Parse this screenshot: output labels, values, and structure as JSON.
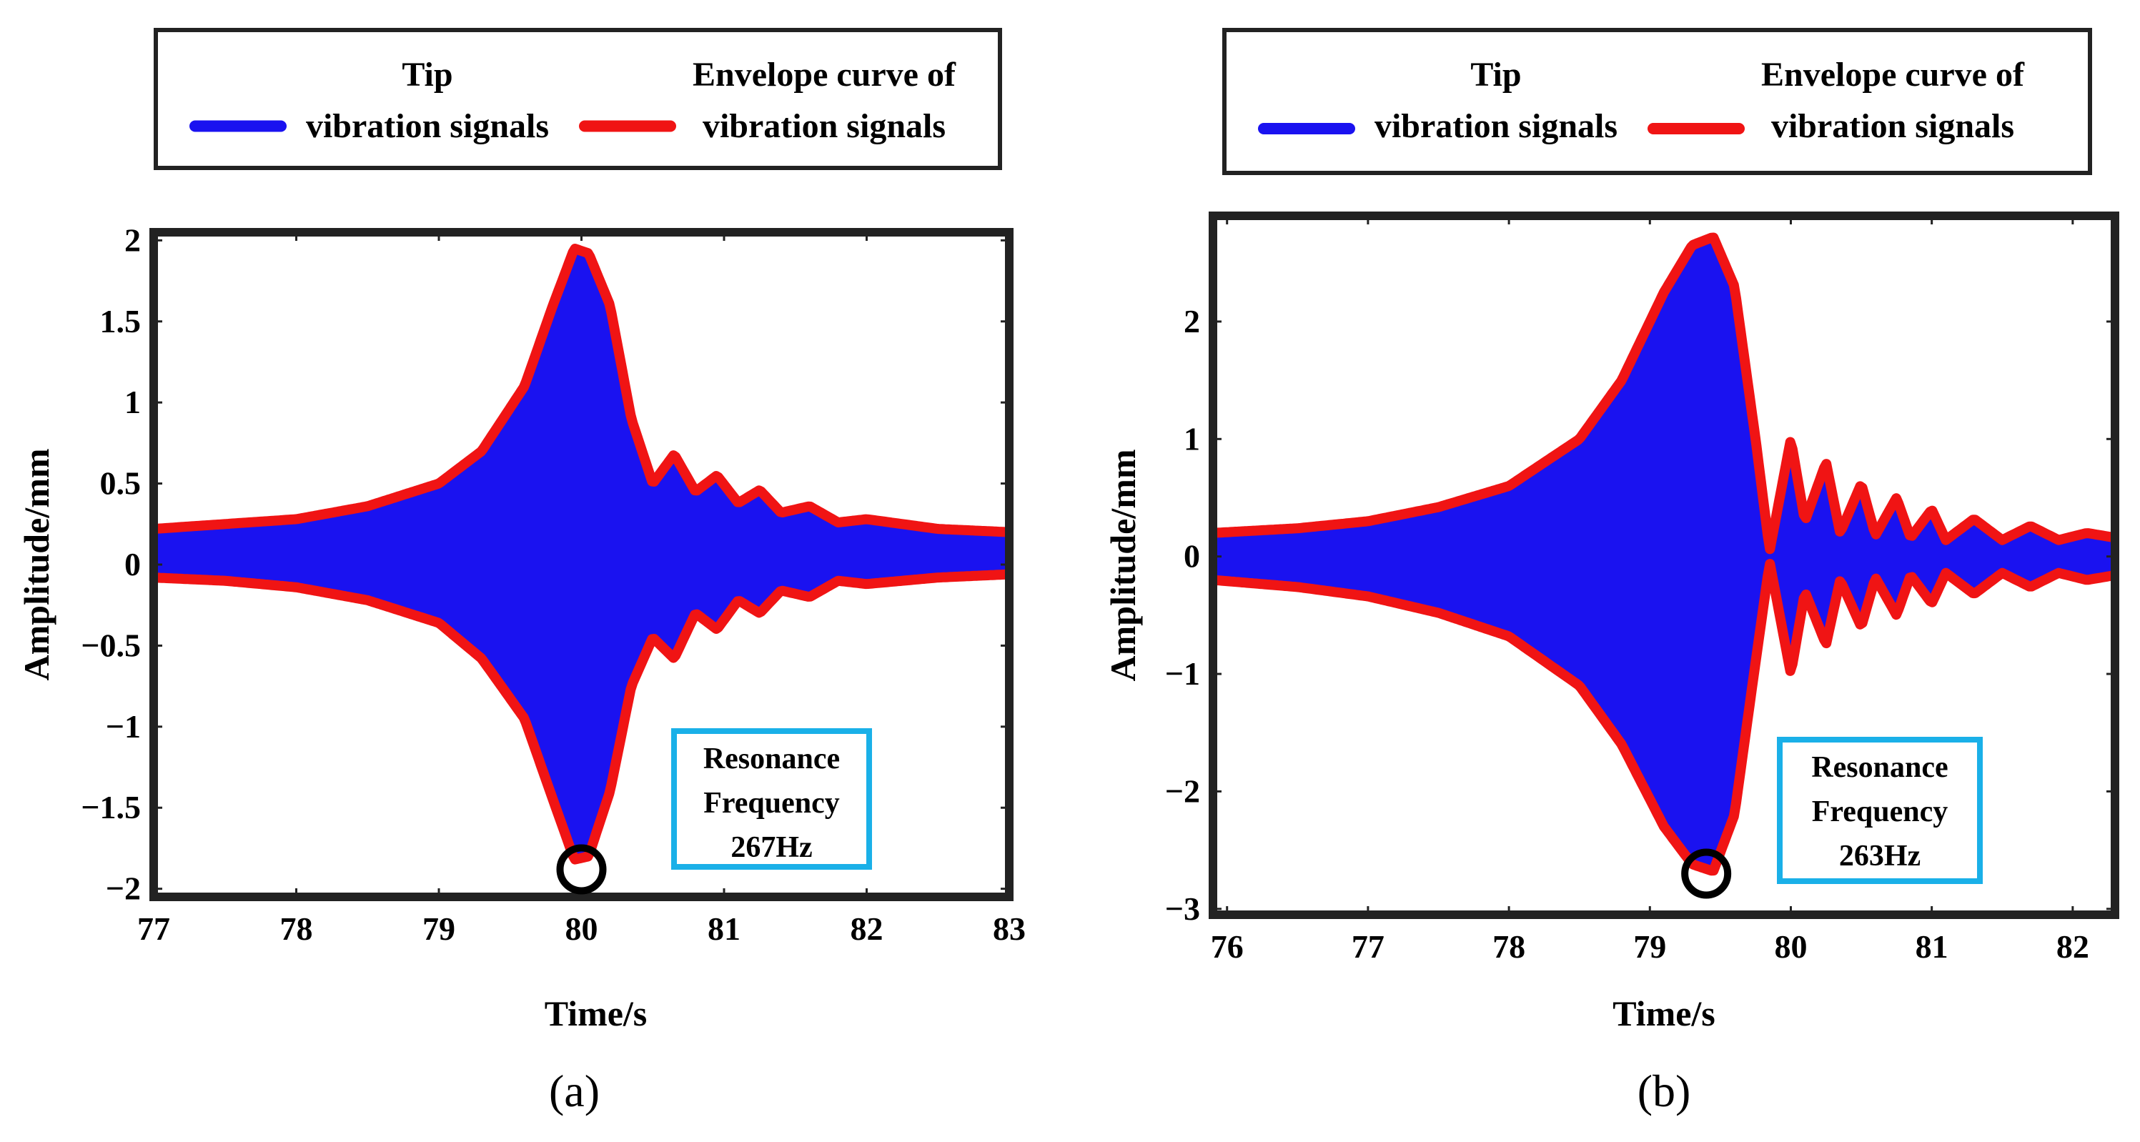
{
  "chart_data": [
    {
      "type": "line",
      "panel_label": "(a)",
      "legend": {
        "placement": "top",
        "entries": [
          {
            "line1": "Tip",
            "line2": "vibration signals",
            "color": "#1a12f0"
          },
          {
            "line1": "Envelope curve of",
            "line2": "vibration signals",
            "color": "#f01414"
          }
        ]
      },
      "xlabel": "Time/s",
      "ylabel": "Amplitude/mm",
      "xlim": [
        77,
        83
      ],
      "ylim": [
        -2.05,
        2.05
      ],
      "xticks": [
        77,
        78,
        79,
        80,
        81,
        82,
        83
      ],
      "xtick_labels": [
        "77",
        "78",
        "79",
        "80",
        "81",
        "82",
        "83"
      ],
      "yticks": [
        -2,
        -1.5,
        -1,
        -0.5,
        0,
        0.5,
        1,
        1.5,
        2
      ],
      "ytick_labels": [
        "−2",
        "−1.5",
        "−1",
        "−0.5",
        "0",
        "0.5",
        "1",
        "1.5",
        "2"
      ],
      "series": [
        {
          "name": "Tip vibration signals",
          "color": "#1a12f0",
          "kind": "filled-band"
        },
        {
          "name": "Envelope curve of vibration signals",
          "color": "#f01414",
          "upper": [
            [
              77,
              0.22
            ],
            [
              77.5,
              0.25
            ],
            [
              78,
              0.28
            ],
            [
              78.5,
              0.36
            ],
            [
              79,
              0.5
            ],
            [
              79.3,
              0.7
            ],
            [
              79.6,
              1.1
            ],
            [
              79.8,
              1.6
            ],
            [
              79.95,
              1.95
            ],
            [
              80.05,
              1.92
            ],
            [
              80.2,
              1.6
            ],
            [
              80.35,
              0.9
            ],
            [
              80.5,
              0.5
            ],
            [
              80.65,
              0.68
            ],
            [
              80.8,
              0.45
            ],
            [
              80.95,
              0.55
            ],
            [
              81.1,
              0.38
            ],
            [
              81.25,
              0.46
            ],
            [
              81.4,
              0.32
            ],
            [
              81.6,
              0.36
            ],
            [
              81.8,
              0.26
            ],
            [
              82,
              0.28
            ],
            [
              82.5,
              0.22
            ],
            [
              83,
              0.2
            ]
          ],
          "lower": [
            [
              77,
              -0.08
            ],
            [
              77.5,
              -0.1
            ],
            [
              78,
              -0.14
            ],
            [
              78.5,
              -0.22
            ],
            [
              79,
              -0.36
            ],
            [
              79.3,
              -0.58
            ],
            [
              79.6,
              -0.95
            ],
            [
              79.8,
              -1.45
            ],
            [
              79.95,
              -1.82
            ],
            [
              80.05,
              -1.8
            ],
            [
              80.2,
              -1.4
            ],
            [
              80.35,
              -0.75
            ],
            [
              80.5,
              -0.45
            ],
            [
              80.65,
              -0.58
            ],
            [
              80.8,
              -0.3
            ],
            [
              80.95,
              -0.4
            ],
            [
              81.1,
              -0.22
            ],
            [
              81.25,
              -0.3
            ],
            [
              81.4,
              -0.16
            ],
            [
              81.6,
              -0.2
            ],
            [
              81.8,
              -0.1
            ],
            [
              82,
              -0.12
            ],
            [
              82.5,
              -0.08
            ],
            [
              83,
              -0.06
            ]
          ]
        }
      ],
      "marker": {
        "x": 80.0,
        "y": -1.88,
        "shape": "circle"
      },
      "annotation": {
        "lines": [
          "Resonance",
          "Frequency",
          "267Hz"
        ],
        "border_color": "#1ab0e8"
      }
    },
    {
      "type": "line",
      "panel_label": "(b)",
      "legend": {
        "placement": "top",
        "entries": [
          {
            "line1": "Tip",
            "line2": "vibration signals",
            "color": "#1a12f0"
          },
          {
            "line1": "Envelope curve of",
            "line2": "vibration signals",
            "color": "#f01414"
          }
        ]
      },
      "xlabel": "Time/s",
      "ylabel": "Amplitude/mm",
      "xlim": [
        75.9,
        82.3
      ],
      "ylim": [
        -3.05,
        2.9
      ],
      "xticks": [
        76,
        77,
        78,
        79,
        80,
        81,
        82
      ],
      "xtick_labels": [
        "76",
        "77",
        "78",
        "79",
        "80",
        "81",
        "82"
      ],
      "yticks": [
        -3,
        -2,
        -1,
        0,
        1,
        2
      ],
      "ytick_labels": [
        "−3",
        "−2",
        "−1",
        "0",
        "1",
        "2"
      ],
      "series": [
        {
          "name": "Tip vibration signals",
          "color": "#1a12f0",
          "kind": "filled-band"
        },
        {
          "name": "Envelope curve of vibration signals",
          "color": "#f01414",
          "upper": [
            [
              75.9,
              0.2
            ],
            [
              76.5,
              0.24
            ],
            [
              77,
              0.3
            ],
            [
              77.5,
              0.42
            ],
            [
              78,
              0.6
            ],
            [
              78.5,
              1.0
            ],
            [
              78.8,
              1.5
            ],
            [
              79.1,
              2.25
            ],
            [
              79.3,
              2.65
            ],
            [
              79.45,
              2.72
            ],
            [
              79.6,
              2.3
            ],
            [
              79.75,
              1.0
            ],
            [
              79.85,
              0.05
            ],
            [
              80.0,
              1.0
            ],
            [
              80.1,
              0.3
            ],
            [
              80.25,
              0.8
            ],
            [
              80.35,
              0.2
            ],
            [
              80.5,
              0.62
            ],
            [
              80.6,
              0.18
            ],
            [
              80.75,
              0.5
            ],
            [
              80.85,
              0.16
            ],
            [
              81.0,
              0.4
            ],
            [
              81.1,
              0.14
            ],
            [
              81.3,
              0.32
            ],
            [
              81.5,
              0.14
            ],
            [
              81.7,
              0.26
            ],
            [
              81.9,
              0.14
            ],
            [
              82.1,
              0.2
            ],
            [
              82.3,
              0.16
            ]
          ],
          "lower": [
            [
              75.9,
              -0.2
            ],
            [
              76.5,
              -0.26
            ],
            [
              77,
              -0.34
            ],
            [
              77.5,
              -0.48
            ],
            [
              78,
              -0.68
            ],
            [
              78.5,
              -1.1
            ],
            [
              78.8,
              -1.6
            ],
            [
              79.1,
              -2.3
            ],
            [
              79.3,
              -2.62
            ],
            [
              79.45,
              -2.68
            ],
            [
              79.6,
              -2.2
            ],
            [
              79.75,
              -0.9
            ],
            [
              79.85,
              -0.05
            ],
            [
              80.0,
              -1.0
            ],
            [
              80.1,
              -0.3
            ],
            [
              80.25,
              -0.75
            ],
            [
              80.35,
              -0.2
            ],
            [
              80.5,
              -0.6
            ],
            [
              80.6,
              -0.18
            ],
            [
              80.75,
              -0.5
            ],
            [
              80.85,
              -0.16
            ],
            [
              81.0,
              -0.4
            ],
            [
              81.1,
              -0.14
            ],
            [
              81.3,
              -0.32
            ],
            [
              81.5,
              -0.14
            ],
            [
              81.7,
              -0.26
            ],
            [
              81.9,
              -0.14
            ],
            [
              82.1,
              -0.2
            ],
            [
              82.3,
              -0.16
            ]
          ]
        }
      ],
      "marker": {
        "x": 79.4,
        "y": -2.7,
        "shape": "circle"
      },
      "annotation": {
        "lines": [
          "Resonance",
          "Frequency",
          "263Hz"
        ],
        "border_color": "#1ab0e8"
      }
    }
  ]
}
